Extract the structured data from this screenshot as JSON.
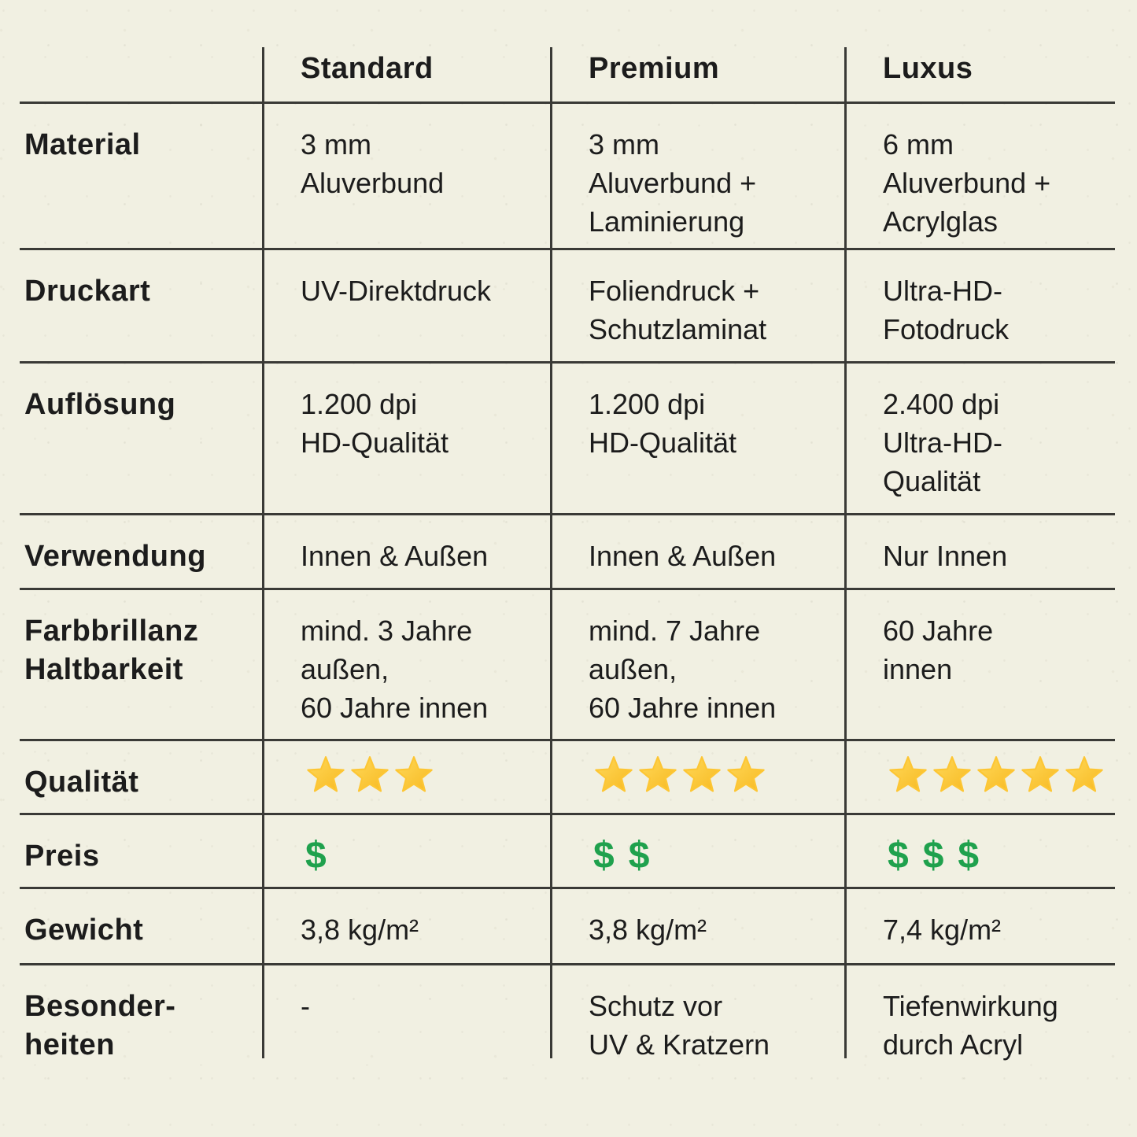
{
  "page": {
    "background_color": "#f1f0e2",
    "rule_color": "#3a3a36",
    "text_color": "#1c1c1c",
    "star_color": "#fdc634",
    "dollar_color": "#1fa14d"
  },
  "icons": {
    "quality_icon": "star-icon",
    "price_icon": "dollar-icon"
  },
  "table": {
    "headers": [
      "Standard",
      "Premium",
      "Luxus"
    ],
    "rows": [
      {
        "label": "Material",
        "type": "text",
        "values": [
          "3 mm\nAluverbund",
          "3 mm\nAluverbund +\nLaminierung",
          "6 mm\nAluverbund +\nAcrylglas"
        ]
      },
      {
        "label": "Druckart",
        "type": "text",
        "values": [
          "UV-Direktdruck",
          "Foliendruck +\nSchutzlaminat",
          "Ultra-HD-\nFotodruck"
        ]
      },
      {
        "label": "Auflösung",
        "type": "text",
        "values": [
          "1.200 dpi\nHD-Qualität",
          "1.200 dpi\nHD-Qualität",
          "2.400 dpi\nUltra-HD-\nQualität"
        ]
      },
      {
        "label": "Verwendung",
        "type": "text",
        "values": [
          "Innen & Außen",
          "Innen & Außen",
          "Nur Innen"
        ]
      },
      {
        "label": "Farbbrillanz\nHaltbarkeit",
        "type": "text",
        "values": [
          "mind. 3 Jahre\naußen,\n60 Jahre innen",
          "mind. 7 Jahre\naußen,\n60 Jahre innen",
          "60 Jahre\ninnen"
        ]
      },
      {
        "label": "Qualität",
        "type": "stars",
        "values": [
          3,
          4,
          5
        ]
      },
      {
        "label": "Preis",
        "type": "dollars",
        "values": [
          1,
          2,
          3
        ]
      },
      {
        "label": "Gewicht",
        "type": "text",
        "values": [
          "3,8 kg/m²",
          "3,8 kg/m²",
          "7,4 kg/m²"
        ]
      },
      {
        "label": "Besonder-\nheiten",
        "type": "text",
        "values": [
          "-",
          "Schutz vor\nUV & Kratzern",
          "Tiefenwirkung\ndurch Acryl"
        ]
      }
    ]
  }
}
